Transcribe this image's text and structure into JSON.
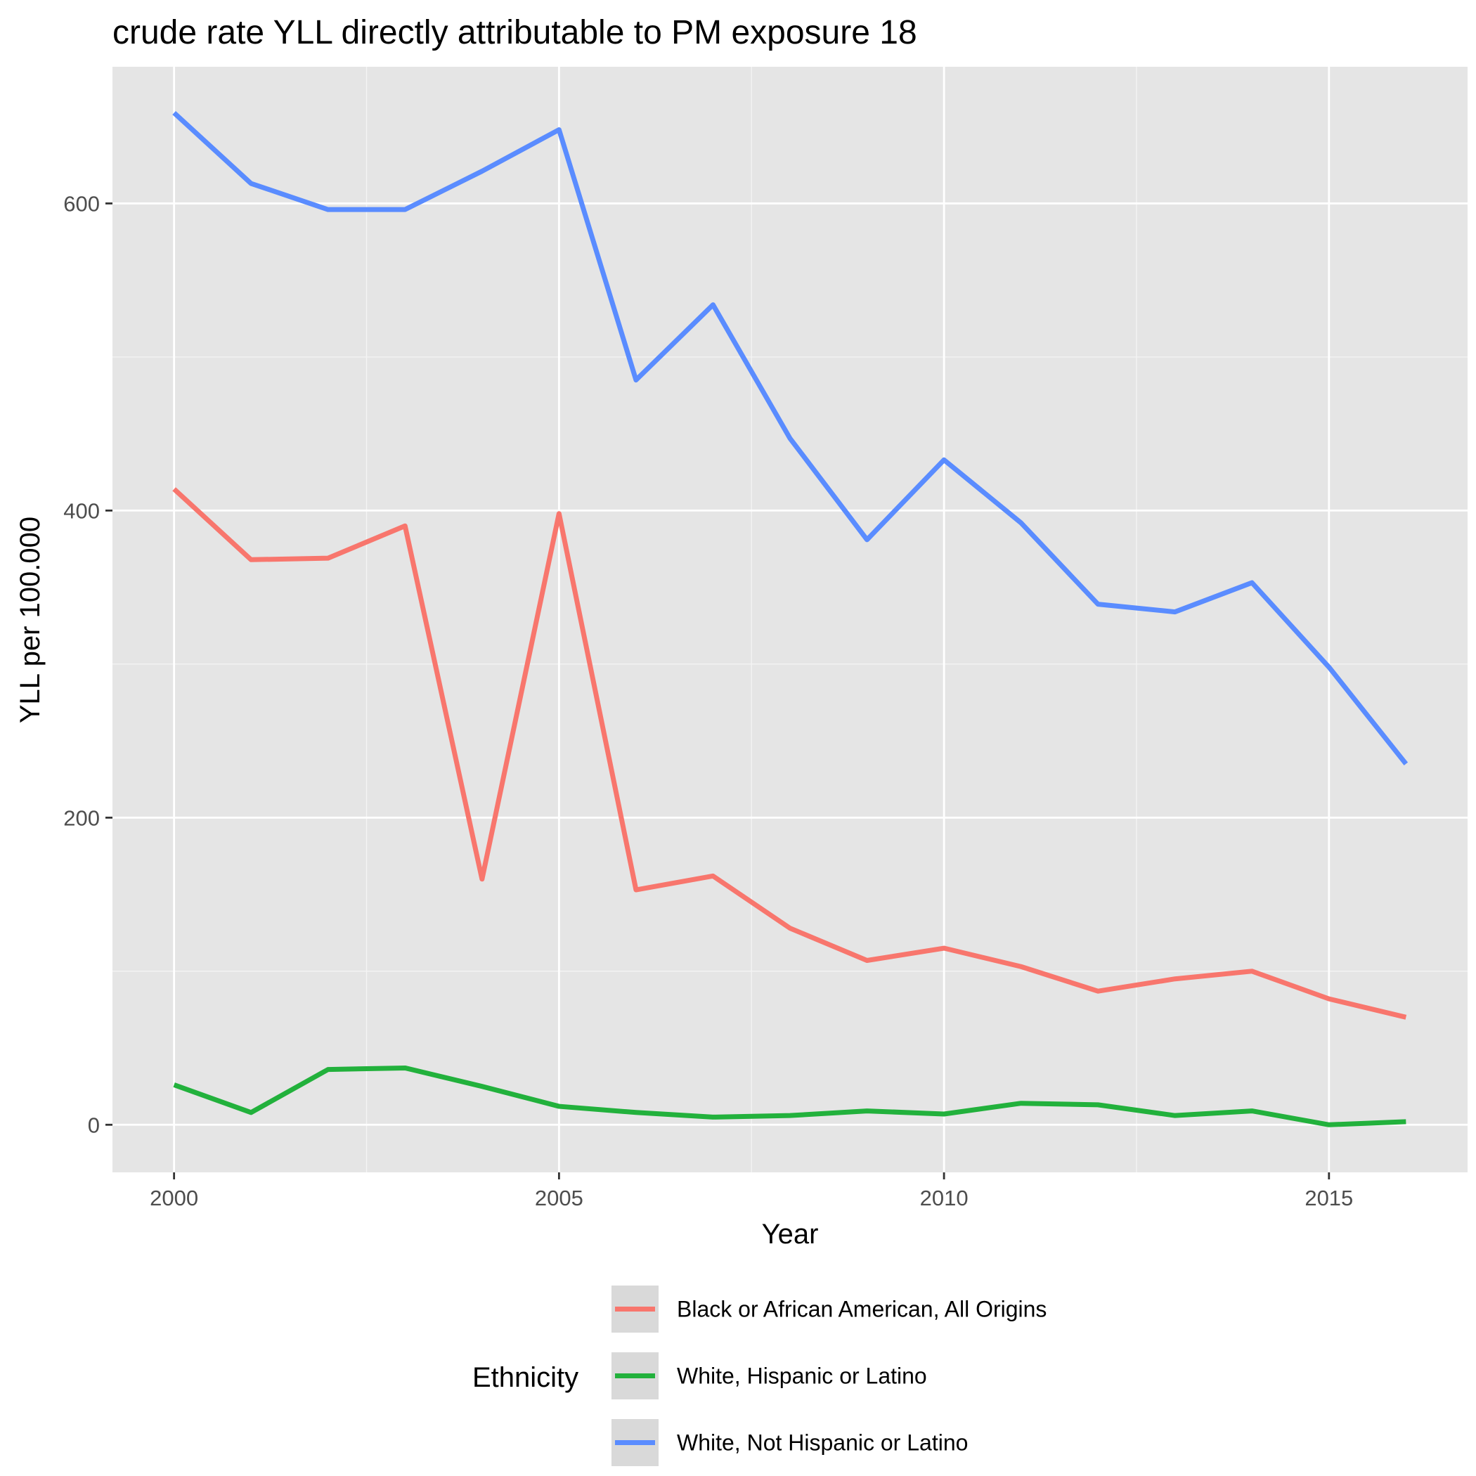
{
  "chart_data": {
    "type": "line",
    "title": "crude rate YLL directly attributable to PM exposure 18",
    "xlabel": "Year",
    "ylabel": "YLL per 100.000",
    "x": [
      2000,
      2001,
      2002,
      2003,
      2004,
      2005,
      2006,
      2007,
      2008,
      2009,
      2010,
      2011,
      2012,
      2013,
      2014,
      2015,
      2016
    ],
    "xlim": [
      1999.2,
      2016.8
    ],
    "ylim": [
      -31,
      689
    ],
    "x_ticks": [
      2000,
      2005,
      2010,
      2015
    ],
    "x_tick_labels": [
      "2000",
      "2005",
      "2010",
      "2015"
    ],
    "y_ticks": [
      0,
      200,
      400,
      600
    ],
    "y_tick_labels": [
      "0",
      "200",
      "400",
      "600"
    ],
    "grid": true,
    "background": "#e5e5e5",
    "legend": {
      "title": "Ethnicity",
      "position": "bottom"
    },
    "series": [
      {
        "name": "Black or African American, All Origins",
        "color": "#f8766d",
        "values": [
          414,
          368,
          369,
          390,
          160,
          398,
          153,
          162,
          128,
          107,
          115,
          103,
          87,
          95,
          100,
          82,
          70
        ]
      },
      {
        "name": "White, Hispanic or Latino",
        "color": "#22b13c",
        "values": [
          26,
          8,
          36,
          37,
          25,
          12,
          8,
          5,
          6,
          9,
          7,
          14,
          13,
          6,
          9,
          0,
          2
        ]
      },
      {
        "name": "White, Not Hispanic or Latino",
        "color": "#5a8cff",
        "values": [
          659,
          613,
          596,
          596,
          621,
          648,
          485,
          534,
          447,
          381,
          433,
          392,
          339,
          334,
          353,
          298,
          235
        ]
      }
    ]
  }
}
